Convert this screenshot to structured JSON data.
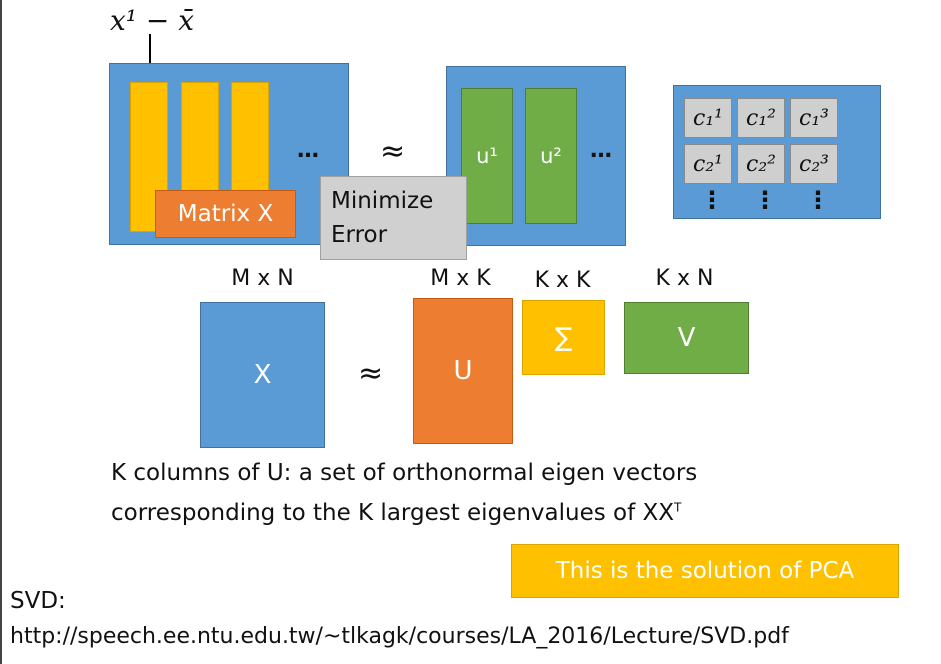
{
  "top": {
    "vector_label": "x¹ − x̄",
    "ellipsis": "…",
    "approx": "≈",
    "matrix_x_label": "Matrix X",
    "minimize_error": [
      "Minimize",
      "Error"
    ],
    "u_labels": [
      "u¹",
      "u²"
    ],
    "coefficients": [
      [
        "c₁¹",
        "c₁²",
        "c₁³"
      ],
      [
        "c₂¹",
        "c₂²",
        "c₂³"
      ]
    ],
    "vdots": [
      "⋮",
      "⋮",
      "⋮"
    ]
  },
  "svd": {
    "dims": {
      "x": "M x N",
      "u": "M x K",
      "sigma": "K x K",
      "v": "K x N"
    },
    "x_label": "X",
    "approx": "≈",
    "u_label": "U",
    "sigma_label": "∑",
    "v_label": "V"
  },
  "description": {
    "line1": "K columns of U: a set of orthonormal eigen vectors",
    "line2": "corresponding to the K largest eigenvalues of XX",
    "line2_sup": "T"
  },
  "pca_note": "This is the solution of PCA",
  "footer": {
    "svd_label": "SVD:",
    "url": "http://speech.ee.ntu.edu.tw/~tlkagk/courses/LA_2016/Lecture/SVD.pdf"
  },
  "colors": {
    "blue": "#5b9bd5",
    "yellow": "#ffc000",
    "green": "#70ad47",
    "orange": "#ed7d31",
    "gray": "#cfcfcf"
  }
}
